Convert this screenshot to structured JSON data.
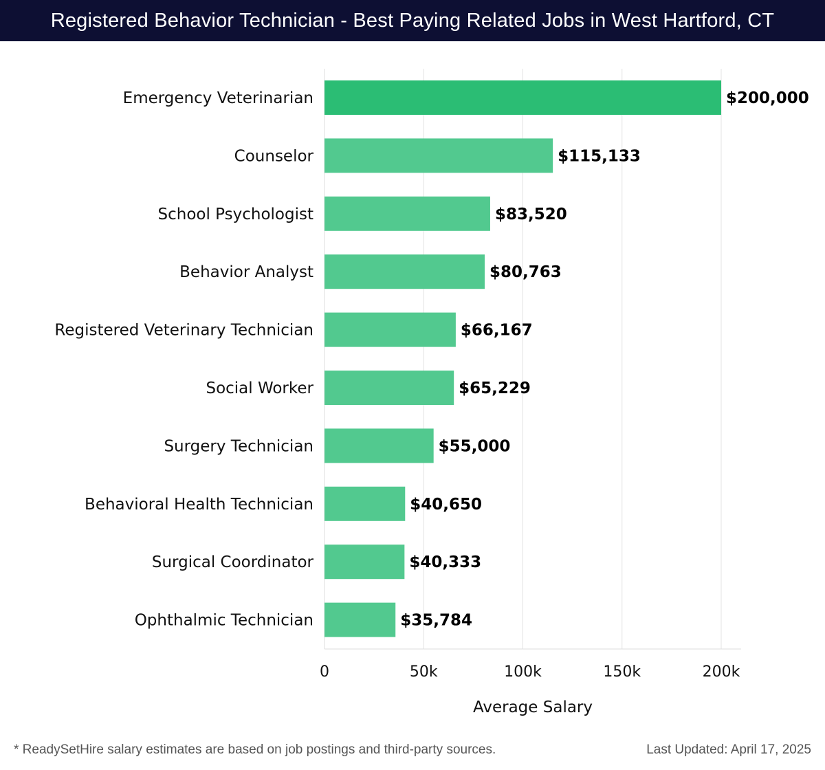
{
  "header": {
    "title": "Registered Behavior Technician - Best Paying Related Jobs in West Hartford, CT"
  },
  "chart_data": {
    "type": "bar",
    "orientation": "horizontal",
    "categories": [
      "Emergency Veterinarian",
      "Counselor",
      "School Psychologist",
      "Behavior Analyst",
      "Registered Veterinary Technician",
      "Social Worker",
      "Surgery Technician",
      "Behavioral Health Technician",
      "Surgical Coordinator",
      "Ophthalmic Technician"
    ],
    "values": [
      200000,
      115133,
      83520,
      80763,
      66167,
      65229,
      55000,
      40650,
      40333,
      35784
    ],
    "value_labels": [
      "$200,000",
      "$115,133",
      "$83,520",
      "$80,763",
      "$66,167",
      "$65,229",
      "$55,000",
      "$40,650",
      "$40,333",
      "$35,784"
    ],
    "xlabel": "Average Salary",
    "ylabel": "",
    "xlim": [
      0,
      210000
    ],
    "xticks": [
      0,
      50000,
      100000,
      150000,
      200000
    ],
    "xtick_labels": [
      "0",
      "50k",
      "100k",
      "150k",
      "200k"
    ],
    "grid": true,
    "bar_colors": {
      "top": "#2bbd74",
      "rest": "#52c98f"
    },
    "gridline_color": "#e3e3e3"
  },
  "footer": {
    "note": "* ReadySetHire salary estimates are based on job postings and third-party sources.",
    "updated": "Last Updated: April 17, 2025"
  }
}
